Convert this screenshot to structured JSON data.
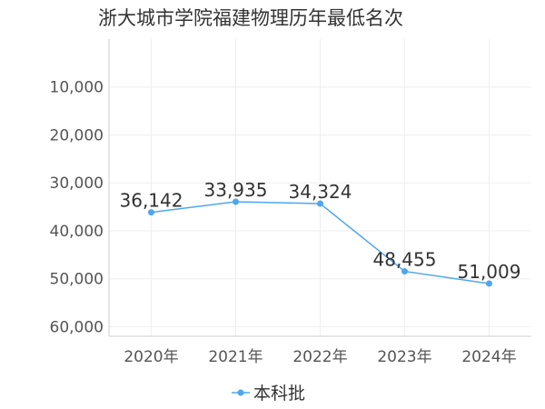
{
  "chart_data": {
    "type": "line",
    "title": "浙大城市学院福建物理历年最低名次",
    "categories": [
      "2020年",
      "2021年",
      "2022年",
      "2023年",
      "2024年"
    ],
    "series": [
      {
        "name": "本科批",
        "values": [
          36142,
          33935,
          34324,
          48455,
          51009
        ],
        "labels": [
          "36,142",
          "33,935",
          "34,324",
          "48,455",
          "51,009"
        ]
      }
    ],
    "y_ticks": [
      10000,
      20000,
      30000,
      40000,
      50000,
      60000
    ],
    "y_tick_labels": [
      "10,000",
      "20,000",
      "30,000",
      "40,000",
      "50,000",
      "60,000"
    ],
    "ylim": [
      0,
      62000
    ],
    "y_inverted": true,
    "grid": true,
    "legend_position": "bottom-center",
    "colors": {
      "series": "#4da6f0",
      "grid": "#eeeeee",
      "axis": "#cccccc"
    }
  }
}
